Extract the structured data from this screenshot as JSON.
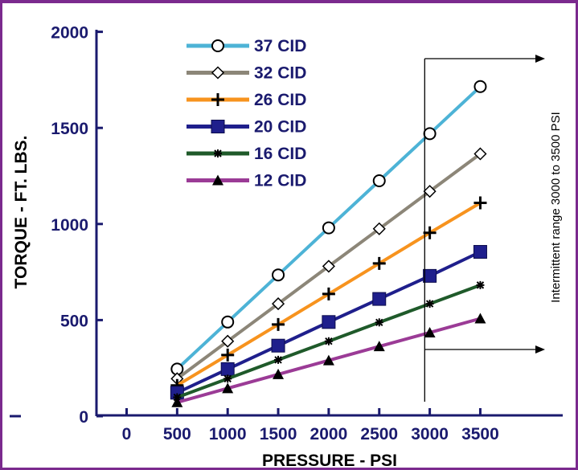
{
  "colors": {
    "frame": "#7b2a8e",
    "axis": "#1a1a6e",
    "annotation": "#000000"
  },
  "chart_data": {
    "type": "line",
    "xlabel": "PRESSURE - PSI",
    "ylabel": "TORQUE - FT. LBS.",
    "xlim": [
      -500,
      3750
    ],
    "ylim": [
      0,
      2000
    ],
    "x_ticks": [
      0,
      500,
      1000,
      1500,
      2000,
      2500,
      3000,
      3500
    ],
    "y_ticks": [
      0,
      500,
      1000,
      1500,
      2000
    ],
    "grid": false,
    "legend_position": "top-left",
    "x": [
      500,
      1000,
      1500,
      2000,
      2500,
      3000,
      3500
    ],
    "series": [
      {
        "name": "37 CID",
        "color": "#4db3d6",
        "marker": "open-circle",
        "values": [
          245,
          490,
          735,
          980,
          1225,
          1470,
          1715
        ]
      },
      {
        "name": "32 CID",
        "color": "#8c8678",
        "marker": "open-diamond",
        "values": [
          195,
          390,
          585,
          780,
          975,
          1170,
          1365
        ]
      },
      {
        "name": "26 CID",
        "color": "#f7931e",
        "marker": "plus",
        "values": [
          160,
          318,
          477,
          636,
          795,
          954,
          1110
        ]
      },
      {
        "name": "20 CID",
        "color": "#1f1f8c",
        "marker": "filled-square",
        "values": [
          122,
          245,
          367,
          490,
          610,
          730,
          855
        ]
      },
      {
        "name": "16 CID",
        "color": "#1f5a2a",
        "marker": "star",
        "values": [
          98,
          195,
          293,
          390,
          488,
          585,
          682
        ]
      },
      {
        "name": "12 CID",
        "color": "#9b3b96",
        "marker": "filled-triangle",
        "values": [
          72,
          145,
          218,
          290,
          363,
          435,
          508
        ]
      }
    ],
    "annotations": [
      {
        "text": "Intermittent range 3000 to 3500 PSI",
        "x_from": 2950,
        "x_to": 3500
      }
    ]
  }
}
